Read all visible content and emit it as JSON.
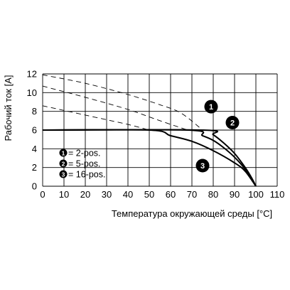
{
  "chart_data": {
    "type": "line",
    "title": "",
    "xlabel": "Температура окружающей среды [°C]",
    "ylabel": "Рабочий ток [A]",
    "xlim": [
      0,
      110
    ],
    "ylim": [
      0,
      12
    ],
    "xticks": [
      0,
      10,
      20,
      30,
      40,
      50,
      60,
      70,
      80,
      90,
      100,
      110
    ],
    "yticks": [
      0,
      2,
      4,
      6,
      8,
      10,
      12
    ],
    "grid": true,
    "legend": {
      "placement": "lower-left",
      "entries": [
        {
          "marker": "1",
          "label": "= 2-pos."
        },
        {
          "marker": "2",
          "label": "= 5-pos."
        },
        {
          "marker": "3",
          "label": "= 16-pos."
        }
      ]
    },
    "series": [
      {
        "marker": "1",
        "style": "solid",
        "points": [
          [
            0,
            6
          ],
          [
            75,
            6
          ],
          [
            80,
            5.5
          ],
          [
            85,
            4.6
          ],
          [
            90,
            3.5
          ],
          [
            95,
            2.0
          ],
          [
            98,
            0.9
          ],
          [
            100,
            0
          ]
        ]
      },
      {
        "marker": "2",
        "style": "solid",
        "points": [
          [
            0,
            6
          ],
          [
            68,
            6
          ],
          [
            75,
            5.4
          ],
          [
            80,
            4.9
          ],
          [
            85,
            4.1
          ],
          [
            90,
            3.1
          ],
          [
            95,
            1.8
          ],
          [
            100,
            0
          ]
        ]
      },
      {
        "marker": "3",
        "style": "solid",
        "points": [
          [
            0,
            6
          ],
          [
            50,
            6
          ],
          [
            60,
            5.4
          ],
          [
            70,
            4.8
          ],
          [
            80,
            3.8
          ],
          [
            90,
            2.5
          ],
          [
            95,
            1.6
          ],
          [
            100,
            0
          ]
        ]
      },
      {
        "marker": "1",
        "style": "dashed",
        "points": [
          [
            0,
            11.9
          ],
          [
            20,
            11.0
          ],
          [
            40,
            9.8
          ],
          [
            55,
            8.7
          ],
          [
            65,
            7.8
          ],
          [
            75,
            6
          ]
        ]
      },
      {
        "marker": "2",
        "style": "dashed",
        "points": [
          [
            0,
            10.7
          ],
          [
            20,
            9.5
          ],
          [
            40,
            8.2
          ],
          [
            55,
            7.0
          ],
          [
            68,
            6
          ]
        ]
      },
      {
        "marker": "3",
        "style": "dashed",
        "points": [
          [
            0,
            8.6
          ],
          [
            20,
            7.6
          ],
          [
            40,
            6.6
          ],
          [
            50,
            6
          ]
        ]
      }
    ],
    "callouts": [
      {
        "marker": "1",
        "x": 79,
        "y": 8.5
      },
      {
        "marker": "2",
        "x": 89,
        "y": 6.8
      },
      {
        "marker": "3",
        "x": 75,
        "y": 2.2
      }
    ],
    "colors": {
      "line": "#000000",
      "grid": "#000000",
      "marker_fill": "#000000"
    }
  }
}
